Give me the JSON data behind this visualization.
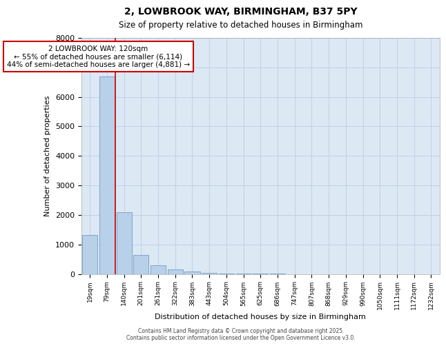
{
  "title1": "2, LOWBROOK WAY, BIRMINGHAM, B37 5PY",
  "title2": "Size of property relative to detached houses in Birmingham",
  "xlabel": "Distribution of detached houses by size in Birmingham",
  "ylabel": "Number of detached properties",
  "categories": [
    "19sqm",
    "79sqm",
    "140sqm",
    "201sqm",
    "261sqm",
    "322sqm",
    "383sqm",
    "443sqm",
    "504sqm",
    "565sqm",
    "625sqm",
    "686sqm",
    "747sqm",
    "807sqm",
    "868sqm",
    "929sqm",
    "990sqm",
    "1050sqm",
    "1111sqm",
    "1172sqm",
    "1232sqm"
  ],
  "values": [
    1310,
    6690,
    2100,
    650,
    300,
    150,
    80,
    40,
    15,
    5,
    2,
    1,
    0,
    0,
    0,
    0,
    0,
    0,
    0,
    0,
    0
  ],
  "bar_color": "#b8d0e8",
  "bar_edge_color": "#6090c0",
  "grid_color": "#c0d0e8",
  "background_color": "#dce8f4",
  "vline_color": "#cc0000",
  "vline_pos": 1.5,
  "annotation_text": "2 LOWBROOK WAY: 120sqm\n← 55% of detached houses are smaller (6,114)\n44% of semi-detached houses are larger (4,881) →",
  "annotation_box_color": "#cc0000",
  "ylim": [
    0,
    8000
  ],
  "yticks": [
    0,
    1000,
    2000,
    3000,
    4000,
    5000,
    6000,
    7000,
    8000
  ],
  "footer_line1": "Contains HM Land Registry data © Crown copyright and database right 2025.",
  "footer_line2": "Contains public sector information licensed under the Open Government Licence v3.0."
}
